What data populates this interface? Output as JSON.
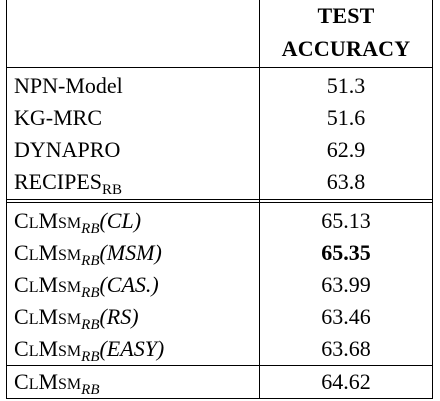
{
  "table": {
    "header": {
      "line1": "TEST",
      "line2": "ACCURACY"
    },
    "group1": [
      {
        "name": "NPN-Model",
        "value": "51.3"
      },
      {
        "name": "KG-MRC",
        "value": "51.6"
      },
      {
        "name": "DYNAPRO",
        "value": "62.9"
      },
      {
        "name": "RECIPES",
        "sub": "RB",
        "value": "63.8"
      }
    ],
    "clmsm": {
      "c": "C",
      "l": "L",
      "m": "M",
      "sm": "SM",
      "sub": "RB"
    },
    "group2": [
      {
        "arg": "(CL)",
        "value": "65.13",
        "best": false
      },
      {
        "arg": "(MSM)",
        "value": "65.35",
        "best": true
      },
      {
        "arg": "(CAS.)",
        "value": "63.99",
        "best": false
      },
      {
        "arg": "(RS)",
        "value": "63.46",
        "best": false
      },
      {
        "arg": "(EASY)",
        "value": "63.68",
        "best": false
      }
    ],
    "final": {
      "value": "64.62"
    }
  }
}
